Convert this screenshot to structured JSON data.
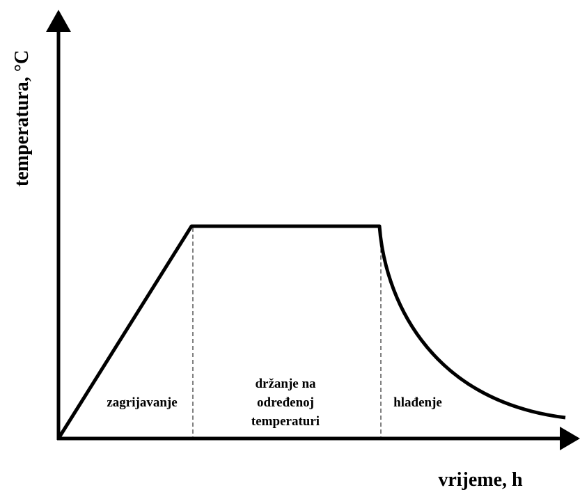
{
  "axes": {
    "y_label": "temperatura, °C",
    "x_label": "vrijeme, h"
  },
  "phases": [
    {
      "lines": [
        "zagrijavanje"
      ]
    },
    {
      "lines": [
        "držanje na",
        "određenoj",
        "temperaturi"
      ]
    },
    {
      "lines": [
        "hlađenje"
      ]
    }
  ]
}
